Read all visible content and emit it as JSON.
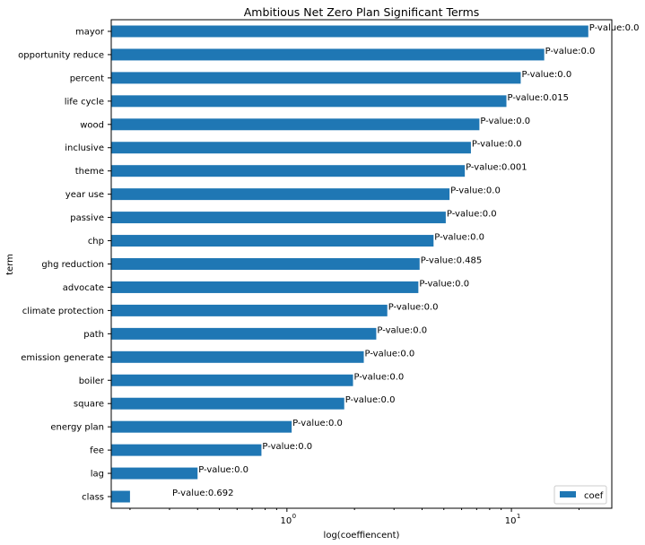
{
  "chart_data": {
    "type": "bar",
    "orientation": "horizontal",
    "title": "Ambitious Net Zero Plan Significant Terms",
    "xlabel": "log(coeffiencent)",
    "ylabel": "term",
    "xscale": "log",
    "xlim": [
      0.165,
      28
    ],
    "x_ticks": [
      {
        "value": 1,
        "base": "10",
        "exp": "0"
      },
      {
        "value": 10,
        "base": "10",
        "exp": "1"
      }
    ],
    "categories": [
      "mayor",
      "opportunity reduce",
      "percent",
      "life cycle",
      "wood",
      "inclusive",
      "theme",
      "year use",
      "passive",
      "chp",
      "ghg reduction",
      "advocate",
      "climate protection",
      "path",
      "emission generate",
      "boiler",
      "square",
      "energy plan",
      "fee",
      "lag",
      "class"
    ],
    "series": [
      {
        "name": "coef",
        "color": "#1f77b4",
        "values": [
          22.0,
          14.0,
          11.0,
          9.5,
          7.2,
          6.6,
          6.2,
          5.3,
          5.1,
          4.5,
          3.9,
          3.85,
          2.8,
          2.5,
          2.2,
          1.97,
          1.8,
          1.05,
          0.77,
          0.4,
          0.2
        ]
      }
    ],
    "annotations": [
      "P-value:0.0",
      "P-value:0.0",
      "P-value:0.0",
      "P-value:0.015",
      "P-value:0.0",
      "P-value:0.0",
      "P-value:0.001",
      "P-value:0.0",
      "P-value:0.0",
      "P-value:0.0",
      "P-value:0.485",
      "P-value:0.0",
      "P-value:0.0",
      "P-value:0.0",
      "P-value:0.0",
      "P-value:0.0",
      "P-value:0.0",
      "P-value:0.0",
      "P-value:0.0",
      "P-value:0.0",
      "P-value:0.692"
    ],
    "legend": {
      "position": "bottom-right",
      "label": "coef"
    },
    "grid": false
  }
}
